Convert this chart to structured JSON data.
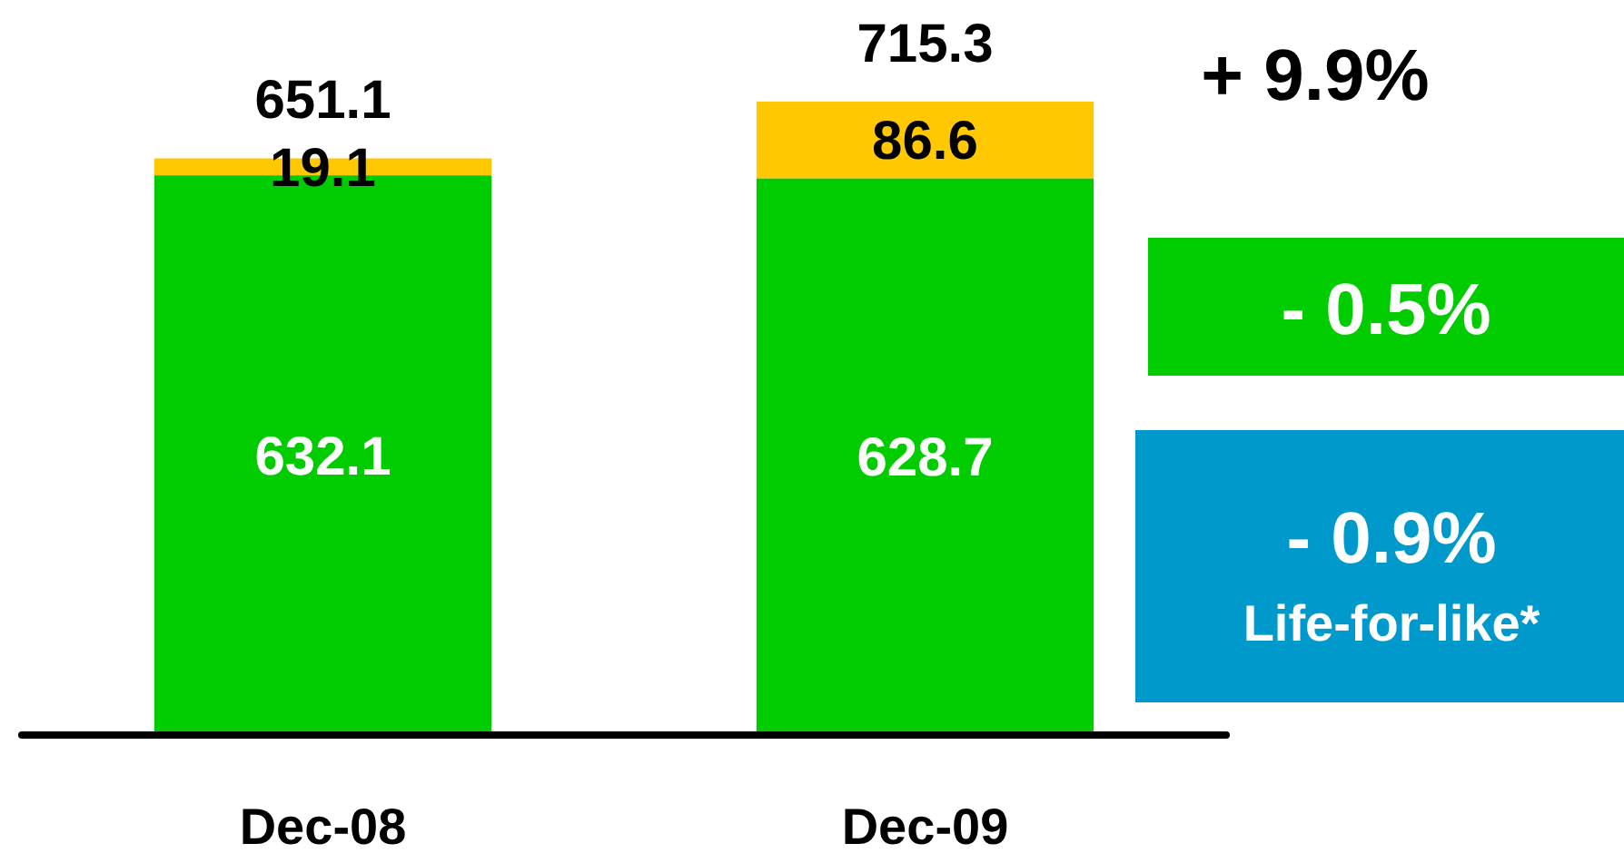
{
  "chart_data": {
    "type": "bar",
    "stacked": true,
    "categories": [
      "Dec-08",
      "Dec-09"
    ],
    "series": [
      {
        "color": "#00cc00",
        "values": [
          632.1,
          628.7
        ]
      },
      {
        "color": "#ffc800",
        "values": [
          19.1,
          86.6
        ]
      }
    ],
    "ylim": [
      0,
      830
    ],
    "tick_labels": "x",
    "data_labels": true,
    "totals": [
      "651.1",
      "715.3"
    ],
    "annotations": [
      "+ 9.9%",
      "- 0.5%",
      "- 0.9%",
      "Life-for-like*"
    ]
  }
}
